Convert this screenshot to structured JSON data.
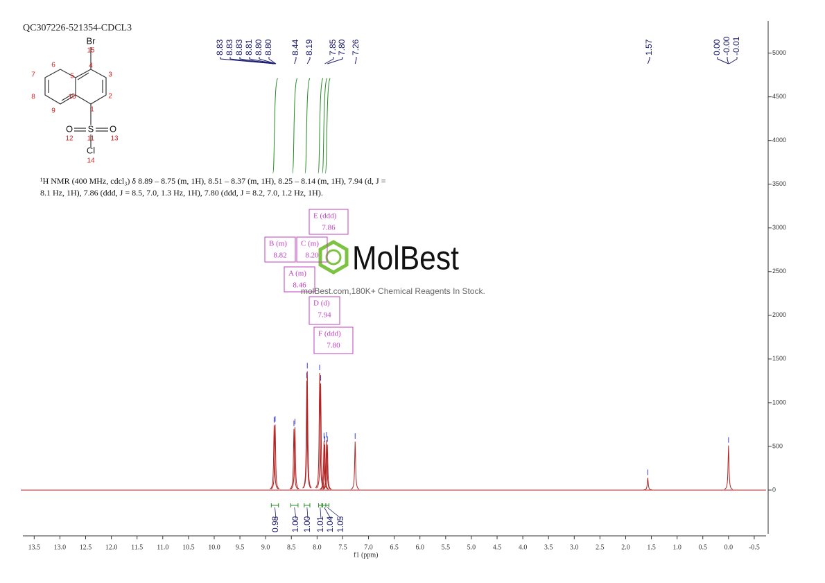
{
  "chart_data": {
    "type": "nmr",
    "title": "QC307226-521354-CDCL3",
    "x_label": "f1 (ppm)",
    "xlim": [
      13.72,
      -0.73
    ],
    "xticks": [
      13.5,
      {
        "value": 13,
        "label": "13.0"
      },
      12.5,
      {
        "value": 12,
        "label": "12.0"
      },
      11.5,
      {
        "value": 11,
        "label": "11.0"
      },
      10.5,
      {
        "value": 10,
        "label": "10.0"
      },
      9.5,
      {
        "value": 9,
        "label": "9.0"
      },
      8.5,
      {
        "value": 8,
        "label": "8.0"
      },
      7.5,
      {
        "value": 7,
        "label": "7.0"
      },
      6.5,
      {
        "value": 6,
        "label": "6.0"
      },
      5.5,
      {
        "value": 5,
        "label": "5.0"
      },
      4.5,
      {
        "value": 4,
        "label": "4.0"
      },
      3.5,
      {
        "value": 3,
        "label": "3.0"
      },
      2.5,
      {
        "value": 2,
        "label": "2.0"
      },
      1.5,
      {
        "value": 1,
        "label": "1.0"
      },
      0.5,
      {
        "value": 0,
        "label": "0.0"
      },
      -0.5
    ],
    "ylim": [
      -500,
      5370
    ],
    "yticks": [
      0,
      500,
      1000,
      1500,
      2000,
      2500,
      3000,
      3500,
      4000,
      4500,
      5000
    ],
    "spectrum_color": "#b22222",
    "peaks": {
      "x": [
        8.835,
        8.815,
        8.45,
        8.43,
        8.2,
        8.19,
        7.95,
        7.93,
        7.865,
        7.85,
        7.815,
        7.8,
        7.26,
        1.57,
        0.0
      ],
      "values": [
        740,
        750,
        700,
        720,
        1250,
        1360,
        1340,
        1220,
        560,
        520,
        570,
        520,
        555,
        140,
        510
      ]
    },
    "peak_labels": [
      "8.83",
      "8.83",
      "8.83",
      "8.81",
      "8.80",
      "8.80",
      "8.44",
      "8.19",
      "7.85",
      "7.80",
      "7.26",
      "1.57",
      "0.00",
      "-0.00",
      "-0.01"
    ],
    "integrals": {
      "color": "#228b22",
      "ranges": [
        [
          8.89,
          8.75
        ],
        [
          8.51,
          8.37
        ],
        [
          8.25,
          8.14
        ],
        [
          7.97,
          7.91
        ],
        [
          7.89,
          7.83
        ],
        [
          7.83,
          7.77
        ]
      ],
      "values": [
        0.98,
        1,
        1,
        1.01,
        1.04,
        1.05
      ],
      "value_labels": [
        "0.98",
        "1.00",
        "1.00",
        "1.01",
        "1.04",
        "1.05"
      ]
    },
    "multiplets": [
      {
        "label": "E (ddd)",
        "shift": "7.86"
      },
      {
        "label": "B (m)",
        "shift": "8.82"
      },
      {
        "label": "C (m)",
        "shift": "8.20"
      },
      {
        "label": "A (m)",
        "shift": "8.46"
      },
      {
        "label": "D (d)",
        "shift": "7.94"
      },
      {
        "label": "F (ddd)",
        "shift": "7.80"
      }
    ],
    "description": [
      "¹H NMR (400 MHz, cdcl₃) δ 8.89 – 8.75 (m, 1H), 8.51 – 8.37 (m, 1H), 8.25 – 8.14 (m, 1H), 7.94 (d, J =",
      "8.1 Hz, 1H), 7.86 (ddd, J = 8.5, 7.0, 1.3 Hz, 1H), 7.80 (ddd, J = 8.2, 7.0, 1.2 Hz, 1H)."
    ],
    "molecule": {
      "symbols": [
        "Br",
        "S",
        "O",
        "O",
        "Cl"
      ],
      "numbers": [
        "1",
        "2",
        "3",
        "4",
        "5",
        "6",
        "7",
        "8",
        "9",
        "10",
        "11",
        "12",
        "13",
        "14",
        "15"
      ]
    },
    "watermark": {
      "brand": "MolBest",
      "tagline": "molBest.com,180K+ Chemical Reagents In Stock."
    }
  }
}
